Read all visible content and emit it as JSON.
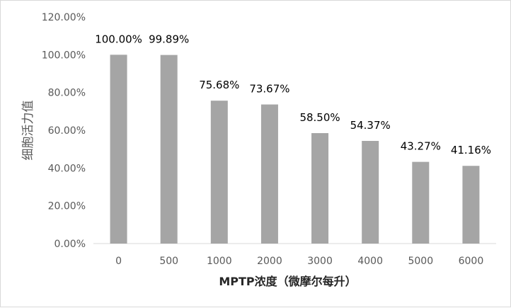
{
  "chart_data": {
    "type": "bar",
    "categories": [
      "0",
      "500",
      "1000",
      "2000",
      "3000",
      "4000",
      "5000",
      "6000"
    ],
    "values": [
      100.0,
      99.89,
      75.68,
      73.67,
      58.5,
      54.37,
      43.27,
      41.16
    ],
    "data_labels": [
      "100.00%",
      "99.89%",
      "75.68%",
      "73.67%",
      "58.50%",
      "54.37%",
      "43.27%",
      "41.16%"
    ],
    "y_ticks": [
      0,
      20,
      40,
      60,
      80,
      100,
      120
    ],
    "y_tick_labels": [
      "0.00%",
      "20.00%",
      "40.00%",
      "60.00%",
      "80.00%",
      "100.00%",
      "120.00%"
    ],
    "ylim": [
      0,
      120
    ],
    "xlabel": "MPTP浓度（微摩尔每升）",
    "ylabel": "细胞活力值",
    "title": "",
    "grid": false,
    "legend": "none",
    "bar_color": "#a5a5a5",
    "axis_color": "#d9d9d9",
    "text_color": "#595959",
    "label_color": "#000000"
  }
}
